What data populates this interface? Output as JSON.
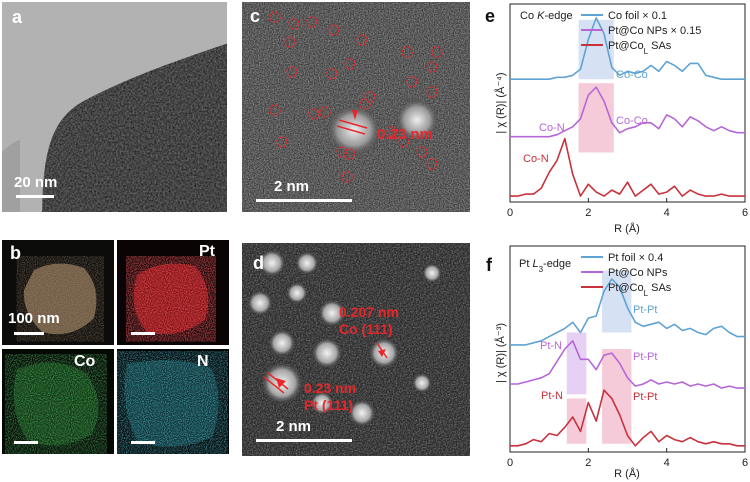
{
  "panels": {
    "a": {
      "label": "a",
      "scale": "20 nm"
    },
    "b": {
      "label": "b",
      "scale": "100 nm",
      "pt": "Pt",
      "co": "Co",
      "n": "N"
    },
    "c": {
      "label": "c",
      "scale": "2 nm",
      "spacing": "0.23 nm"
    },
    "d": {
      "label": "d",
      "scale": "2 nm",
      "ann1_l1": "0.207 nm",
      "ann1_l2": "Co (111)",
      "ann2_l1": "0.23 nm",
      "ann2_l2": "Pt (111)"
    },
    "e": {
      "label": "e",
      "edge_prefix": "Co ",
      "edge_italic": "K",
      "edge_suffix": "-edge",
      "ylabel": "| χ (R)| (Å⁻⁴)",
      "xlabel": "R (Å)",
      "ann": {
        "coco1": "Co-Co",
        "con1": "Co-N",
        "coco2": "Co-Co",
        "con2": "Co-N"
      }
    },
    "f": {
      "label": "f",
      "edge_prefix": "Pt ",
      "edge_italic": "L",
      "edge_sub": "3",
      "edge_suffix": "-edge",
      "ylabel": "| χ (R)| (Å⁻³)",
      "xlabel": "R (Å)",
      "ann": {
        "ptpt1": "Pt-Pt",
        "ptn1": "Pt-N",
        "ptpt2": "Pt-Pt",
        "ptn2": "Pt-N",
        "ptpt3": "Pt-Pt"
      }
    }
  },
  "colors": {
    "blue": "#5fa3d4",
    "purple": "#b667d6",
    "red": "#c8323c",
    "shade_blue": "#cfdcf2",
    "shade_pink": "#f4c2d2",
    "shade_purple": "#e2c8f2"
  },
  "chart_data": [
    {
      "type": "line",
      "xlim": [
        0,
        6
      ],
      "xticks": [
        "0",
        "2",
        "4",
        "6"
      ],
      "x": [
        0,
        0.2,
        0.4,
        0.6,
        0.8,
        1.0,
        1.2,
        1.4,
        1.6,
        1.8,
        2.0,
        2.2,
        2.4,
        2.6,
        2.8,
        3.0,
        3.2,
        3.4,
        3.6,
        3.8,
        4.0,
        4.2,
        4.4,
        4.6,
        4.8,
        5.0,
        5.2,
        5.4,
        5.6,
        5.8,
        6.0
      ],
      "series": [
        {
          "name": "Co foil × 0.1",
          "color": "#5fa3d4",
          "values": [
            0.62,
            0.62,
            0.62,
            0.62,
            0.62,
            0.62,
            0.63,
            0.63,
            0.64,
            0.67,
            0.82,
            0.93,
            0.85,
            0.68,
            0.64,
            0.66,
            0.65,
            0.66,
            0.69,
            0.66,
            0.71,
            0.69,
            0.66,
            0.7,
            0.7,
            0.64,
            0.63,
            0.62,
            0.62,
            0.62,
            0.62
          ]
        },
        {
          "name": "Pt@Co NPs × 0.15",
          "color": "#b667d6",
          "values": [
            0.33,
            0.33,
            0.33,
            0.33,
            0.33,
            0.33,
            0.34,
            0.36,
            0.38,
            0.42,
            0.54,
            0.58,
            0.51,
            0.4,
            0.35,
            0.37,
            0.38,
            0.4,
            0.4,
            0.37,
            0.44,
            0.42,
            0.38,
            0.43,
            0.41,
            0.38,
            0.36,
            0.38,
            0.36,
            0.35,
            0.35
          ]
        },
        {
          "name": "Pt@Co<sub>L</sub> SAs",
          "legend_main": "Pt@Co",
          "legend_sub": "L",
          "legend_tail": " SAs",
          "color": "#c8323c",
          "values": [
            0.03,
            0.03,
            0.04,
            0.04,
            0.07,
            0.15,
            0.21,
            0.32,
            0.14,
            0.03,
            0.09,
            0.05,
            0.03,
            0.06,
            0.04,
            0.1,
            0.03,
            0.06,
            0.09,
            0.04,
            0.05,
            0.08,
            0.03,
            0.06,
            0.04,
            0.03,
            0.03,
            0.04,
            0.03,
            0.03,
            0.03
          ]
        }
      ]
    },
    {
      "type": "line",
      "xlim": [
        0,
        6
      ],
      "xticks": [
        "0",
        "2",
        "4",
        "6"
      ],
      "x": [
        0,
        0.2,
        0.4,
        0.6,
        0.8,
        1.0,
        1.2,
        1.4,
        1.6,
        1.8,
        2.0,
        2.2,
        2.4,
        2.6,
        2.8,
        3.0,
        3.2,
        3.4,
        3.6,
        3.8,
        4.0,
        4.2,
        4.4,
        4.6,
        4.8,
        5.0,
        5.2,
        5.4,
        5.6,
        5.8,
        6.0
      ],
      "series": [
        {
          "name": "Pt foil × 0.4",
          "color": "#5fa3d4",
          "values": [
            0.52,
            0.52,
            0.52,
            0.53,
            0.54,
            0.56,
            0.58,
            0.6,
            0.63,
            0.58,
            0.65,
            0.66,
            0.78,
            0.84,
            0.8,
            0.7,
            0.63,
            0.61,
            0.62,
            0.63,
            0.6,
            0.62,
            0.59,
            0.6,
            0.58,
            0.57,
            0.6,
            0.61,
            0.58,
            0.56,
            0.56
          ]
        },
        {
          "name": "Pt@Co NPs",
          "color": "#b667d6",
          "values": [
            0.33,
            0.33,
            0.34,
            0.35,
            0.36,
            0.38,
            0.44,
            0.5,
            0.54,
            0.45,
            0.45,
            0.4,
            0.47,
            0.48,
            0.43,
            0.36,
            0.32,
            0.33,
            0.35,
            0.33,
            0.34,
            0.33,
            0.34,
            0.32,
            0.33,
            0.32,
            0.33,
            0.31,
            0.32,
            0.31,
            0.31
          ]
        },
        {
          "name": "Pt@Co<sub>L</sub> SAs",
          "legend_main": "Pt@Co",
          "legend_sub": "L",
          "legend_tail": " SAs",
          "color": "#c8323c",
          "values": [
            0.03,
            0.03,
            0.04,
            0.06,
            0.05,
            0.09,
            0.08,
            0.12,
            0.17,
            0.1,
            0.24,
            0.15,
            0.3,
            0.26,
            0.18,
            0.08,
            0.03,
            0.07,
            0.1,
            0.05,
            0.08,
            0.06,
            0.05,
            0.07,
            0.05,
            0.04,
            0.05,
            0.04,
            0.04,
            0.03,
            0.03
          ]
        }
      ]
    }
  ]
}
